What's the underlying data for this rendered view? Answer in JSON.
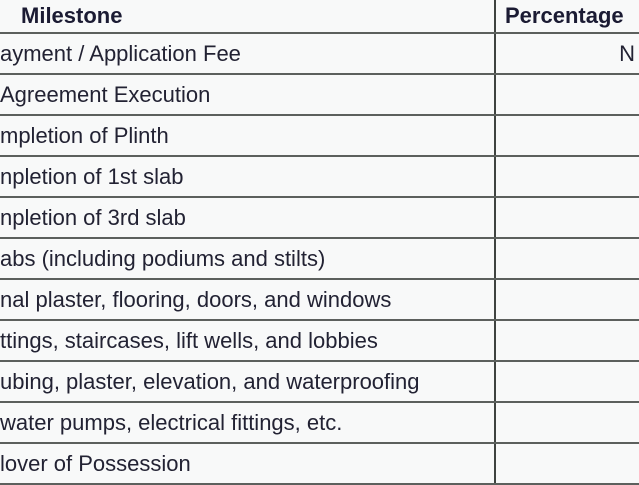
{
  "table": {
    "header": {
      "milestone": "Milestone",
      "percentage": "Percentage"
    },
    "rows": [
      {
        "milestone": "ayment / Application Fee",
        "percentage": "N"
      },
      {
        "milestone": "Agreement Execution",
        "percentage": ""
      },
      {
        "milestone": "mpletion of Plinth",
        "percentage": ""
      },
      {
        "milestone": "npletion of 1st slab",
        "percentage": ""
      },
      {
        "milestone": "npletion of 3rd slab",
        "percentage": ""
      },
      {
        "milestone": "abs (including podiums and stilts)",
        "percentage": ""
      },
      {
        "milestone": "nal plaster, flooring, doors, and windows",
        "percentage": ""
      },
      {
        "milestone": "ttings, staircases, lift wells, and lobbies",
        "percentage": ""
      },
      {
        "milestone": "ubing, plaster, elevation, and waterproofing",
        "percentage": ""
      },
      {
        "milestone": "water pumps, electrical fittings, etc.",
        "percentage": ""
      },
      {
        "milestone": "lover of Possession",
        "percentage": ""
      }
    ]
  },
  "colors": {
    "cell_bg": "#f8f9f9",
    "grid_line": "#5c605d",
    "grid_vert": "#3f4340",
    "header_text": "#1b1b33",
    "body_text": "#222233"
  }
}
